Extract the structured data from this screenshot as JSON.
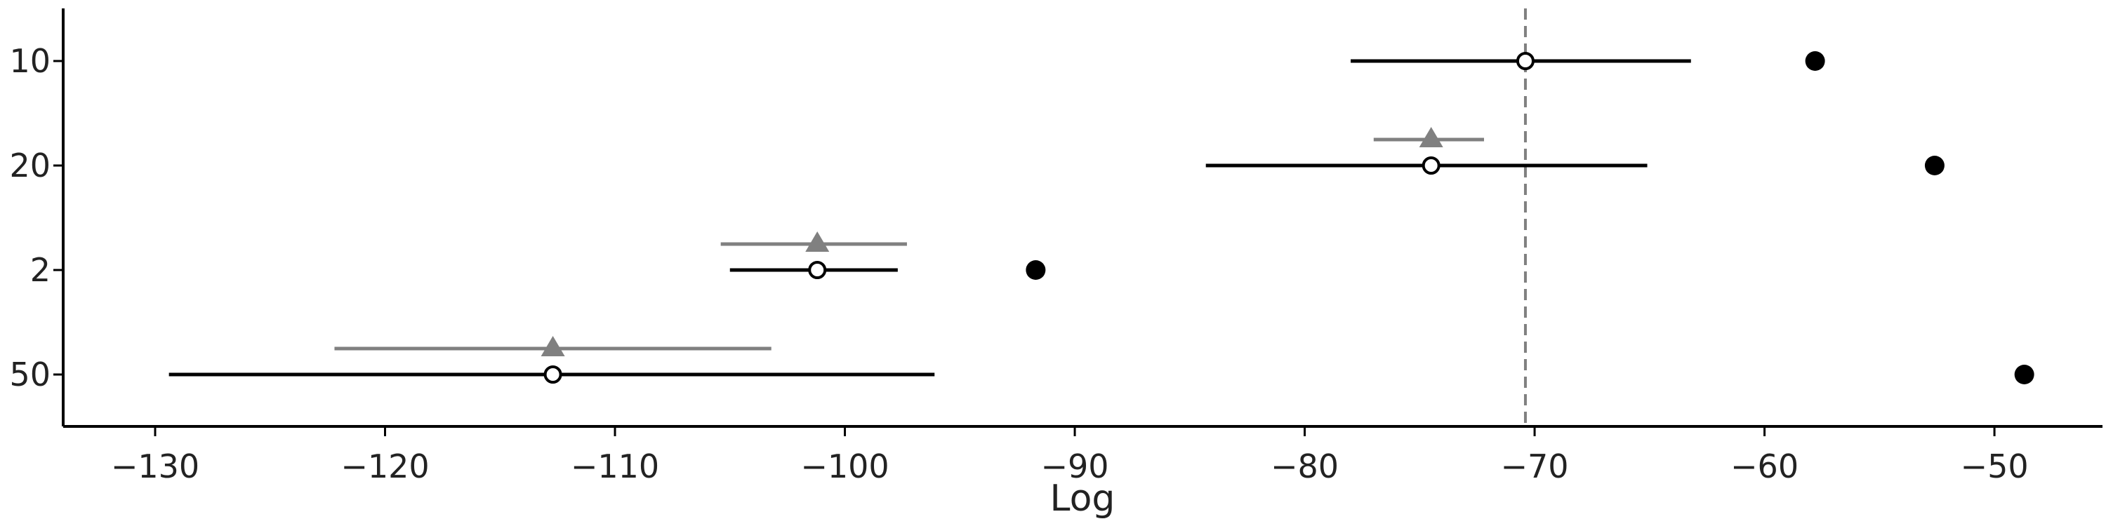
{
  "chart_data": {
    "type": "scatter",
    "title": "",
    "xlabel": "Log",
    "ylabel": "",
    "xlim": [
      -134,
      -45.3
    ],
    "xticks": [
      -130,
      -120,
      -110,
      -100,
      -90,
      -80,
      -70,
      -60,
      -50
    ],
    "xtick_labels": [
      "−130",
      "−120",
      "−110",
      "−100",
      "−90",
      "−80",
      "−70",
      "−60",
      "−50"
    ],
    "categories": [
      "10",
      "20",
      "2",
      "50"
    ],
    "grid": false,
    "legend": "none",
    "reference_line": {
      "x": -70.4,
      "style": "dashed",
      "color": "#808080"
    },
    "series": [
      {
        "marker": "open-circle-with-interval",
        "color": "#000000",
        "points": [
          {
            "category": "10",
            "value": -70.4,
            "low": -78.0,
            "high": -63.2
          },
          {
            "category": "20",
            "value": -74.5,
            "low": -84.3,
            "high": -65.1
          },
          {
            "category": "2",
            "value": -101.2,
            "low": -105.0,
            "high": -97.7
          },
          {
            "category": "50",
            "value": -112.7,
            "low": -129.4,
            "high": -96.1
          }
        ]
      },
      {
        "marker": "triangle-with-interval",
        "color": "#808080",
        "points": [
          {
            "category": "20",
            "value": -74.5,
            "low": -77.0,
            "high": -72.2
          },
          {
            "category": "2",
            "value": -101.2,
            "low": -105.4,
            "high": -97.3
          },
          {
            "category": "50",
            "value": -112.7,
            "low": -122.2,
            "high": -103.2
          }
        ]
      },
      {
        "marker": "filled-circle",
        "color": "#000000",
        "points": [
          {
            "category": "10",
            "value": -57.8
          },
          {
            "category": "20",
            "value": -52.6
          },
          {
            "category": "2",
            "value": -91.7
          },
          {
            "category": "50",
            "value": -48.7
          }
        ]
      }
    ]
  }
}
